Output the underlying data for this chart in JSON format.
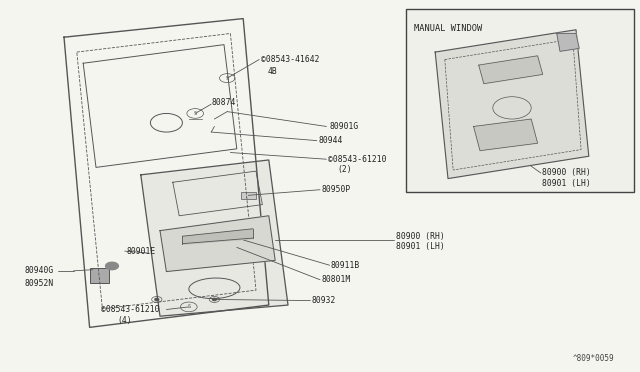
{
  "title": "",
  "background_color": "#f5f5f0",
  "diagram_color": "#333333",
  "line_color": "#555555",
  "fig_width": 6.4,
  "fig_height": 3.72,
  "dpi": 100,
  "inset_label": "MANUAL WINDOW",
  "inset_part_label1": "80900 (RH)",
  "inset_part_label2": "80901 (LH)",
  "corner_text": "^809*0059",
  "font_size": 5.8,
  "small_font_size": 5.5
}
